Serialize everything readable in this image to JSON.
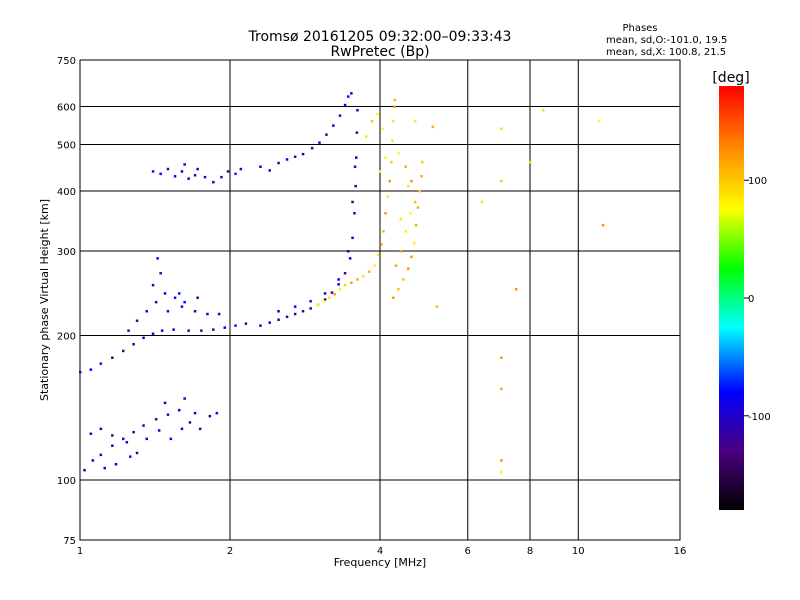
{
  "chart_data": {
    "type": "scatter",
    "title": "Tromsø 20161205 09:32:00–09:33:43",
    "subtitle": "RwPretec (Bp)",
    "xlabel": "Frequency [MHz]",
    "ylabel": "Stationary phase Virtual Height [km]",
    "x_scale": "log",
    "y_scale": "log",
    "xlim": [
      1,
      16
    ],
    "ylim": [
      75,
      750
    ],
    "x_ticks": [
      1,
      2,
      4,
      6,
      8,
      10,
      16
    ],
    "y_ticks": [
      75,
      100,
      200,
      300,
      400,
      500,
      600,
      750
    ],
    "grid": true,
    "stats": {
      "title": "Phases",
      "line_o": "mean, sd,O:-101.0, 19.5",
      "line_x": "mean, sd,X: 100.8, 21.5"
    },
    "colorbar": {
      "label": "[deg]",
      "range": [
        -180,
        180
      ],
      "ticks": [
        -100,
        0,
        100
      ],
      "colors": [
        "#000000",
        "#4b0082",
        "#0000ff",
        "#00ffff",
        "#00ff00",
        "#ffff00",
        "#ff8c00",
        "#ff0000"
      ]
    },
    "series": [
      {
        "points": [
          [
            1.0,
            168
          ],
          [
            1.05,
            170
          ],
          [
            1.1,
            175
          ],
          [
            1.16,
            180
          ],
          [
            1.22,
            186
          ],
          [
            1.28,
            192
          ],
          [
            1.34,
            198
          ],
          [
            1.4,
            202
          ],
          [
            1.46,
            205
          ],
          [
            1.54,
            206
          ],
          [
            1.65,
            205
          ],
          [
            1.75,
            205
          ],
          [
            1.85,
            206
          ],
          [
            1.95,
            208
          ],
          [
            2.05,
            210
          ],
          [
            2.15,
            212
          ],
          [
            1.25,
            205
          ],
          [
            1.3,
            215
          ],
          [
            1.36,
            225
          ],
          [
            1.42,
            235
          ],
          [
            1.48,
            245
          ],
          [
            1.45,
            270
          ],
          [
            1.43,
            290
          ],
          [
            1.4,
            255
          ],
          [
            1.55,
            240
          ],
          [
            1.6,
            230
          ],
          [
            1.7,
            225
          ],
          [
            1.8,
            222
          ],
          [
            1.9,
            222
          ],
          [
            1.5,
            225
          ],
          [
            1.62,
            235
          ],
          [
            1.72,
            240
          ],
          [
            1.58,
            245
          ],
          [
            1.4,
            440
          ],
          [
            1.45,
            435
          ],
          [
            1.5,
            445
          ],
          [
            1.55,
            430
          ],
          [
            1.6,
            440
          ],
          [
            1.65,
            425
          ],
          [
            1.7,
            432
          ],
          [
            1.78,
            428
          ],
          [
            1.85,
            418
          ],
          [
            1.92,
            428
          ],
          [
            1.98,
            440
          ],
          [
            2.05,
            435
          ],
          [
            2.1,
            445
          ],
          [
            1.62,
            455
          ],
          [
            1.72,
            445
          ],
          [
            2.3,
            450
          ],
          [
            2.4,
            442
          ],
          [
            2.5,
            458
          ],
          [
            2.6,
            466
          ],
          [
            2.7,
            472
          ],
          [
            2.8,
            478
          ],
          [
            2.92,
            492
          ],
          [
            3.02,
            505
          ],
          [
            3.12,
            525
          ],
          [
            3.22,
            548
          ],
          [
            3.32,
            575
          ],
          [
            3.4,
            605
          ],
          [
            3.45,
            630
          ],
          [
            3.5,
            640
          ],
          [
            2.3,
            210
          ],
          [
            2.4,
            213
          ],
          [
            2.5,
            216
          ],
          [
            2.6,
            219
          ],
          [
            2.7,
            222
          ],
          [
            2.8,
            225
          ],
          [
            2.9,
            228
          ],
          [
            3.0,
            232
          ],
          [
            3.1,
            238
          ],
          [
            3.2,
            246
          ],
          [
            3.3,
            256
          ],
          [
            3.4,
            270
          ],
          [
            3.48,
            290
          ],
          [
            3.52,
            320
          ],
          [
            3.55,
            360
          ],
          [
            3.57,
            410
          ],
          [
            3.58,
            470
          ],
          [
            3.59,
            530
          ],
          [
            3.6,
            590
          ],
          [
            2.5,
            225
          ],
          [
            2.7,
            230
          ],
          [
            2.9,
            236
          ],
          [
            3.1,
            245
          ],
          [
            3.3,
            262
          ],
          [
            3.45,
            300
          ],
          [
            3.52,
            380
          ],
          [
            3.56,
            450
          ],
          [
            1.02,
            105
          ],
          [
            1.06,
            110
          ],
          [
            1.1,
            113
          ],
          [
            1.16,
            118
          ],
          [
            1.22,
            122
          ],
          [
            1.28,
            126
          ],
          [
            1.34,
            130
          ],
          [
            1.42,
            134
          ],
          [
            1.5,
            137
          ],
          [
            1.58,
            140
          ],
          [
            1.66,
            132
          ],
          [
            1.74,
            128
          ],
          [
            1.82,
            136
          ],
          [
            1.88,
            138
          ],
          [
            1.05,
            125
          ],
          [
            1.1,
            128
          ],
          [
            1.16,
            124
          ],
          [
            1.24,
            120
          ],
          [
            1.3,
            114
          ],
          [
            1.36,
            122
          ],
          [
            1.44,
            127
          ],
          [
            1.52,
            122
          ],
          [
            1.6,
            128
          ],
          [
            1.7,
            138
          ],
          [
            1.12,
            106
          ],
          [
            1.18,
            108
          ],
          [
            1.26,
            112
          ],
          [
            1.48,
            145
          ],
          [
            1.62,
            148
          ]
        ]
      },
      {
        "points": [
          [
            3.0,
            232
          ],
          [
            3.08,
            236
          ],
          [
            3.16,
            240
          ],
          [
            3.24,
            244
          ],
          [
            3.32,
            250
          ],
          [
            3.4,
            255
          ],
          [
            3.5,
            258
          ],
          [
            3.6,
            262
          ],
          [
            3.7,
            266
          ],
          [
            3.8,
            272
          ],
          [
            3.9,
            280
          ],
          [
            3.96,
            295
          ],
          [
            4.02,
            310
          ],
          [
            4.06,
            330
          ],
          [
            4.1,
            360
          ],
          [
            4.14,
            390
          ],
          [
            4.18,
            420
          ],
          [
            4.21,
            460
          ],
          [
            4.23,
            510
          ],
          [
            4.25,
            560
          ],
          [
            4.27,
            600
          ],
          [
            4.28,
            620
          ],
          [
            4.25,
            240
          ],
          [
            4.35,
            250
          ],
          [
            4.45,
            262
          ],
          [
            4.55,
            276
          ],
          [
            4.62,
            292
          ],
          [
            4.68,
            312
          ],
          [
            4.72,
            340
          ],
          [
            4.76,
            370
          ],
          [
            4.8,
            400
          ],
          [
            4.84,
            430
          ],
          [
            4.86,
            460
          ],
          [
            4.3,
            280
          ],
          [
            4.4,
            300
          ],
          [
            4.5,
            330
          ],
          [
            4.6,
            360
          ],
          [
            4.4,
            350
          ],
          [
            4.55,
            410
          ],
          [
            4.5,
            450
          ],
          [
            4.35,
            480
          ],
          [
            4.62,
            420
          ],
          [
            4.7,
            380
          ],
          [
            3.85,
            560
          ],
          [
            3.95,
            580
          ],
          [
            4.05,
            540
          ],
          [
            3.75,
            520
          ],
          [
            4.1,
            470
          ],
          [
            4.0,
            440
          ],
          [
            4.7,
            560
          ],
          [
            5.1,
            545
          ],
          [
            6.4,
            380
          ],
          [
            7.0,
            420
          ],
          [
            7.0,
            540
          ],
          [
            7.5,
            250
          ],
          [
            8.0,
            460
          ],
          [
            8.5,
            590
          ],
          [
            11.0,
            560
          ],
          [
            11.2,
            340
          ],
          [
            7.0,
            110
          ],
          [
            7.0,
            104
          ],
          [
            7.0,
            155
          ],
          [
            7.0,
            180
          ],
          [
            5.2,
            230
          ]
        ]
      }
    ]
  }
}
